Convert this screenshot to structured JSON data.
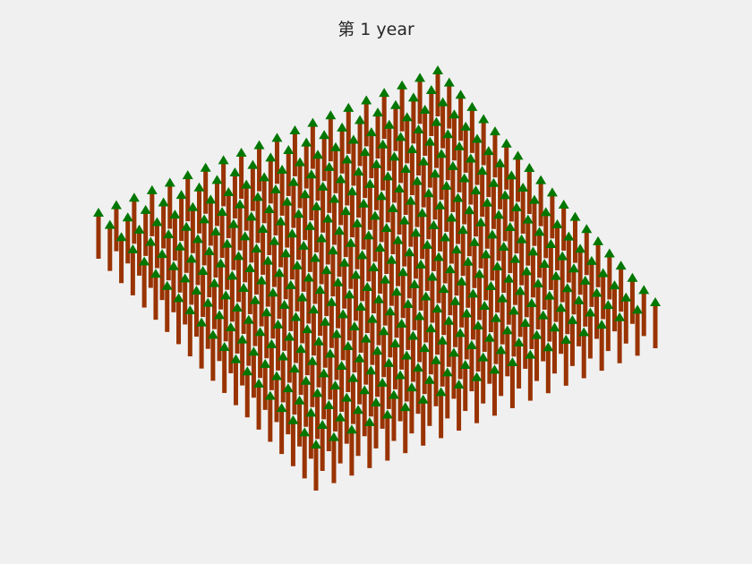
{
  "chart_data": {
    "type": "3d-scatter",
    "title": "第 1 year",
    "grid_size": [
      20,
      20
    ],
    "x": {
      "start": 1,
      "end": 20,
      "step": 1
    },
    "y": {
      "start": 1,
      "end": 20,
      "step": 1
    },
    "tree_height": 1,
    "tree_count": 400,
    "axes_visible": false,
    "trunk_color": "#993300",
    "canopy_color": "#007700"
  }
}
